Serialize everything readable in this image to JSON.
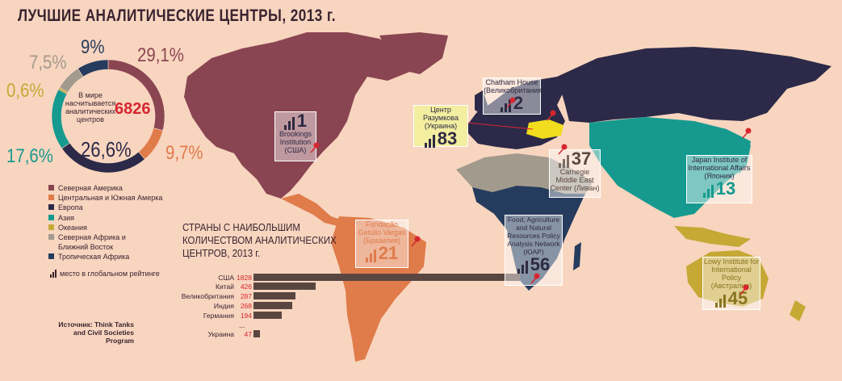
{
  "title": "ЛУЧШИЕ АНАЛИТИЧЕСКИЕ ЦЕНТРЫ, 2013 г.",
  "donut": {
    "center_text": "В мире насчитывается аналитических центров",
    "total": "6826",
    "segments": [
      {
        "label": "29,1%",
        "value": 29.1,
        "color": "#8a4552"
      },
      {
        "label": "9,7%",
        "value": 9.7,
        "color": "#e07b4a"
      },
      {
        "label": "26,6%",
        "value": 26.6,
        "color": "#2c2a48"
      },
      {
        "label": "17,6%",
        "value": 17.6,
        "color": "#169a8f"
      },
      {
        "label": "0,6%",
        "value": 0.6,
        "color": "#c6a835"
      },
      {
        "label": "7,5%",
        "value": 7.5,
        "color": "#a39a8e"
      },
      {
        "label": "9%",
        "value": 9.0,
        "color": "#263c5e"
      }
    ]
  },
  "legend": [
    {
      "label": "Северная Америка",
      "color": "#8a4552"
    },
    {
      "label": "Центральная и Южная Амерка",
      "color": "#e07b4a"
    },
    {
      "label": "Европа",
      "color": "#2c2a48"
    },
    {
      "label": "Азия",
      "color": "#169a8f"
    },
    {
      "label": "Океания",
      "color": "#c6a835"
    },
    {
      "label": "Северная Африка и Ближний Восток",
      "color": "#a39a8e"
    },
    {
      "label": "Тропическая Африка",
      "color": "#263c5e"
    }
  ],
  "rank_note": "место в глобальном рейтинге",
  "source": "Источник: Think Tanks and Civil Societies Program",
  "countries": {
    "title_lines": [
      "СТРАНЫ С НАИБОЛЬШИМ",
      "КОЛИЧЕСТВОМ АНАЛИТИЧЕСКИХ",
      "ЦЕНТРОВ, 2013 г."
    ],
    "rows": [
      {
        "name": "США",
        "value": "1828",
        "num": 1828
      },
      {
        "name": "Китай",
        "value": "426",
        "num": 426
      },
      {
        "name": "Великобритания",
        "value": "287",
        "num": 287
      },
      {
        "name": "Индия",
        "value": "268",
        "num": 268
      },
      {
        "name": "Германия",
        "value": "194",
        "num": 194
      },
      {
        "name": "Украина",
        "value": "47",
        "num": 47
      }
    ],
    "ellipsis": "..."
  },
  "think_tanks": {
    "brookings": {
      "name": "Brookings Institution (США)",
      "rank": "1"
    },
    "chatham": {
      "name": "Chatham House (Великобритания)",
      "rank": "2"
    },
    "razumkov": {
      "name": "Центр Разумкова (Украина)",
      "rank": "83"
    },
    "carnegie": {
      "name": "Carnegie Middle East Center (Ливан)",
      "rank": "37"
    },
    "japan": {
      "name": "Japan Institute of International Affairs (Япония)",
      "rank": "13"
    },
    "fgv": {
      "name": "Fundação Getúlio Vargas (Бразилия)",
      "rank": "21"
    },
    "fanrpan": {
      "name": "Food, Agriculture and Natural Resources Policy Analysis Network (ЮАР)",
      "rank": "56"
    },
    "lowy": {
      "name": "Lowy Institute for International Policy (Австралия)",
      "rank": "45"
    }
  }
}
